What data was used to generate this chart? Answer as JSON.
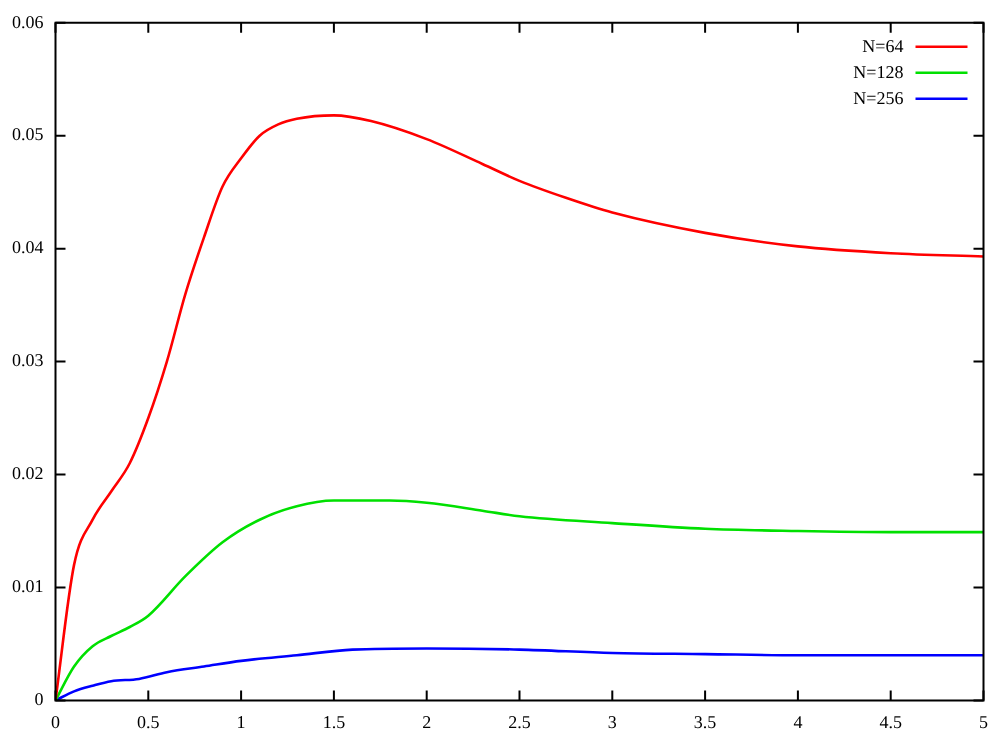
{
  "chart_data": {
    "type": "line",
    "xlim": [
      0,
      5
    ],
    "ylim": [
      0,
      0.06
    ],
    "xticks": [
      0,
      0.5,
      1,
      1.5,
      2,
      2.5,
      3,
      3.5,
      4,
      4.5,
      5
    ],
    "yticks": [
      0,
      0.01,
      0.02,
      0.03,
      0.04,
      0.05,
      0.06
    ],
    "grid": false,
    "legend": "top right",
    "marker": "none",
    "line_style": "solid",
    "series": [
      {
        "name": "N=64",
        "color": "#ff0000",
        "x": [
          0,
          0.1,
          0.2,
          0.3,
          0.4,
          0.5,
          0.6,
          0.7,
          0.8,
          0.9,
          1,
          1.1,
          1.2,
          1.3,
          1.5,
          1.7,
          2,
          2.3,
          2.5,
          2.75,
          3,
          3.5,
          4,
          4.5,
          5
        ],
        "values": [
          0,
          0.012,
          0.016,
          0.0185,
          0.021,
          0.025,
          0.03,
          0.036,
          0.041,
          0.0455,
          0.048,
          0.05,
          0.051,
          0.0515,
          0.0518,
          0.0513,
          0.0497,
          0.0475,
          0.046,
          0.0445,
          0.0432,
          0.0414,
          0.0402,
          0.0396,
          0.0393
        ]
      },
      {
        "name": "N=128",
        "color": "#00e000",
        "x": [
          0,
          0.1,
          0.2,
          0.3,
          0.4,
          0.5,
          0.7,
          0.9,
          1.1,
          1.3,
          1.5,
          1.8,
          2,
          2.3,
          2.5,
          3,
          3.5,
          4,
          4.5,
          5
        ],
        "values": [
          0,
          0.003,
          0.0048,
          0.0057,
          0.0065,
          0.0075,
          0.011,
          0.014,
          0.016,
          0.0172,
          0.0177,
          0.0177,
          0.0175,
          0.0168,
          0.0163,
          0.0157,
          0.0152,
          0.015,
          0.0149,
          0.0149
        ]
      },
      {
        "name": "N=256",
        "color": "#0000ff",
        "x": [
          0,
          0.1,
          0.2,
          0.3,
          0.45,
          0.6,
          0.8,
          1,
          1.3,
          1.6,
          2,
          2.5,
          3,
          3.5,
          4,
          5
        ],
        "values": [
          0,
          0.0008,
          0.0013,
          0.0017,
          0.0019,
          0.0025,
          0.003,
          0.0035,
          0.004,
          0.0045,
          0.0046,
          0.0045,
          0.0042,
          0.0041,
          0.004,
          0.004
        ]
      }
    ]
  }
}
